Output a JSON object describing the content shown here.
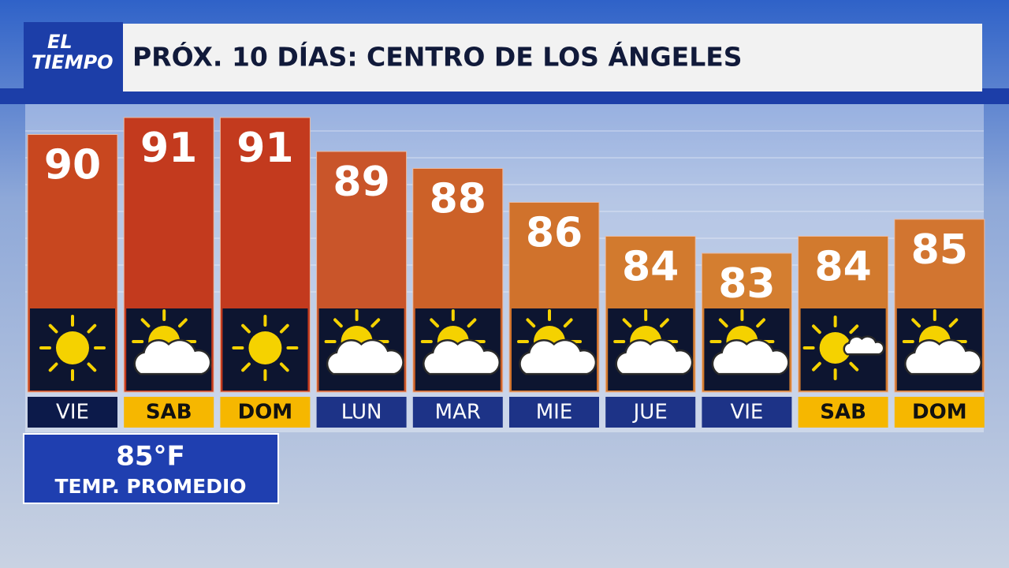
{
  "brand": [
    "EL",
    "TIEMPO"
  ],
  "chart_data": {
    "type": "bar",
    "title": "PRÓX. 10 DÍAS: CENTRO DE LOS ÁNGELES",
    "categories": [
      "VIE",
      "SAB",
      "DOM",
      "LUN",
      "MAR",
      "MIE",
      "JUE",
      "VIE",
      "SAB",
      "DOM"
    ],
    "values": [
      90,
      91,
      91,
      89,
      88,
      86,
      84,
      83,
      84,
      85
    ],
    "colors": [
      "#c8471f",
      "#c33a1e",
      "#c33a1e",
      "#c9552a",
      "#cc6128",
      "#d0722c",
      "#d27a2e",
      "#d47e30",
      "#d27a2e",
      "#d27530"
    ],
    "icons": [
      "sun",
      "partly-cloudy",
      "sun",
      "partly-cloudy",
      "partly-cloudy",
      "partly-cloudy",
      "partly-cloudy",
      "partly-cloudy",
      "mostly-sunny",
      "partly-cloudy"
    ],
    "label_colors": [
      "#0c1a4a",
      "#f6b700",
      "#f6b700",
      "#1d3387",
      "#1d3387",
      "#1d3387",
      "#1d3387",
      "#1d3387",
      "#f6b700",
      "#f6b700"
    ]
  },
  "average": {
    "value": "85°F",
    "label": "TEMP. PROMEDIO"
  }
}
